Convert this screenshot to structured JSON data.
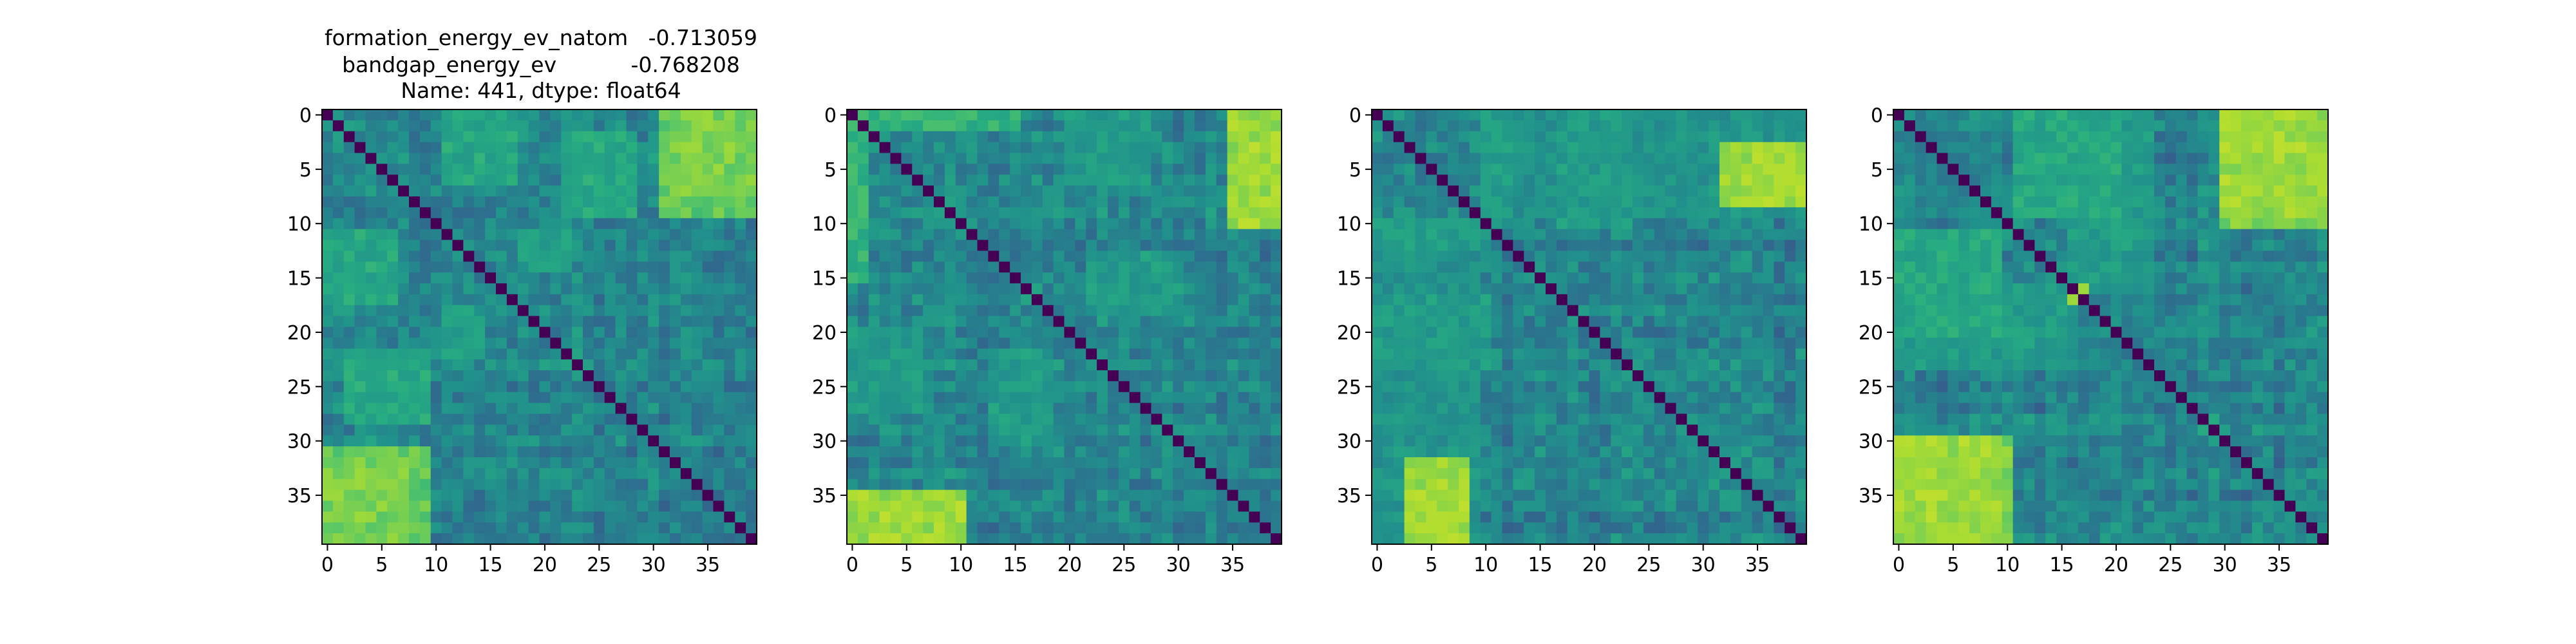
{
  "figure": {
    "title_lines": [
      "formation_energy_ev_natom   -0.713059",
      "bandgap_energy_ev           -0.768208",
      "Name: 441, dtype: float64"
    ]
  },
  "chart_data": [
    {
      "type": "heatmap",
      "title": "",
      "colormap": "viridis",
      "size": 40,
      "diagonal_value": 0,
      "xticks": [
        0,
        5,
        10,
        15,
        20,
        25,
        30,
        35
      ],
      "yticks": [
        0,
        5,
        10,
        15,
        20,
        25,
        30,
        35
      ],
      "xlim": [
        -0.5,
        39.5
      ],
      "ylim": [
        39.5,
        -0.5
      ],
      "bright_blocks": [
        {
          "rows": [
            0,
            9
          ],
          "cols": [
            31,
            39
          ],
          "level": 0.75
        },
        {
          "rows": [
            32,
            39
          ],
          "cols": [
            0,
            7
          ],
          "level": 0.8
        },
        {
          "rows": [
            11,
            17
          ],
          "cols": [
            0,
            6
          ],
          "level": 0.6
        },
        {
          "rows": [
            22,
            28
          ],
          "cols": [
            2,
            9
          ],
          "level": 0.6
        },
        {
          "rows": [
            11,
            14
          ],
          "cols": [
            18,
            22
          ],
          "level": 0.55
        }
      ]
    },
    {
      "type": "heatmap",
      "title": "",
      "colormap": "viridis",
      "size": 40,
      "diagonal_value": 0,
      "xticks": [
        0,
        5,
        10,
        15,
        20,
        25,
        30,
        35
      ],
      "yticks": [
        0,
        5,
        10,
        15,
        20,
        25,
        30,
        35
      ],
      "xlim": [
        -0.5,
        39.5
      ],
      "ylim": [
        39.5,
        -0.5
      ],
      "bright_blocks": [
        {
          "rows": [
            0,
            10
          ],
          "cols": [
            35,
            39
          ],
          "level": 0.85
        },
        {
          "rows": [
            35,
            39
          ],
          "cols": [
            0,
            6
          ],
          "level": 0.8
        },
        {
          "rows": [
            0,
            1
          ],
          "cols": [
            0,
            15
          ],
          "level": 0.65
        },
        {
          "rows": [
            20,
            27
          ],
          "cols": [
            0,
            6
          ],
          "level": 0.55
        },
        {
          "rows": [
            13,
            18
          ],
          "cols": [
            22,
            30
          ],
          "level": 0.55
        }
      ]
    },
    {
      "type": "heatmap",
      "title": "",
      "colormap": "viridis",
      "size": 40,
      "diagonal_value": 0,
      "xticks": [
        0,
        5,
        10,
        15,
        20,
        25,
        30,
        35
      ],
      "yticks": [
        0,
        5,
        10,
        15,
        20,
        25,
        30,
        35
      ],
      "xlim": [
        -0.5,
        39.5
      ],
      "ylim": [
        39.5,
        -0.5
      ],
      "bright_blocks": [
        {
          "rows": [
            3,
            8
          ],
          "cols": [
            32,
            39
          ],
          "level": 0.85
        },
        {
          "rows": [
            34,
            39
          ],
          "cols": [
            3,
            8
          ],
          "level": 0.85
        },
        {
          "rows": [
            10,
            12
          ],
          "cols": [
            0,
            9
          ],
          "level": 0.55
        },
        {
          "rows": [
            17,
            23
          ],
          "cols": [
            0,
            10
          ],
          "level": 0.55
        },
        {
          "rows": [
            0,
            9
          ],
          "cols": [
            10,
            39
          ],
          "level": 0.5
        }
      ]
    },
    {
      "type": "heatmap",
      "title": "",
      "colormap": "viridis",
      "size": 40,
      "diagonal_value": 0,
      "xticks": [
        0,
        5,
        10,
        15,
        20,
        25,
        30,
        35
      ],
      "yticks": [
        0,
        5,
        10,
        15,
        20,
        25,
        30,
        35
      ],
      "xlim": [
        -0.5,
        39.5
      ],
      "ylim": [
        39.5,
        -0.5
      ],
      "bright_blocks": [
        {
          "rows": [
            0,
            9
          ],
          "cols": [
            30,
            39
          ],
          "level": 0.85
        },
        {
          "rows": [
            30,
            39
          ],
          "cols": [
            0,
            10
          ],
          "level": 0.8
        },
        {
          "rows": [
            16,
            23
          ],
          "cols": [
            0,
            16
          ],
          "level": 0.55
        },
        {
          "rows": [
            0,
            9
          ],
          "cols": [
            11,
            20
          ],
          "level": 0.6
        },
        {
          "rows": [
            16,
            17
          ],
          "cols": [
            16,
            17
          ],
          "level": 0.9
        }
      ]
    }
  ]
}
